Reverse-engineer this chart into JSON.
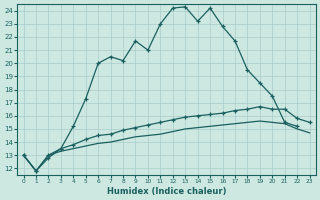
{
  "xlabel": "Humidex (Indice chaleur)",
  "xlim": [
    -0.5,
    23.5
  ],
  "ylim": [
    11.5,
    24.5
  ],
  "xticks": [
    0,
    1,
    2,
    3,
    4,
    5,
    6,
    7,
    8,
    9,
    10,
    11,
    12,
    13,
    14,
    15,
    16,
    17,
    18,
    19,
    20,
    21,
    22,
    23
  ],
  "yticks": [
    12,
    13,
    14,
    15,
    16,
    17,
    18,
    19,
    20,
    21,
    22,
    23,
    24
  ],
  "bg_color": "#cce8e0",
  "grid_color": "#aacccc",
  "line_color": "#1a6060",
  "line1_x": [
    0,
    1,
    2,
    3,
    4,
    5,
    6,
    7,
    8,
    9,
    10,
    11,
    12,
    13,
    14,
    15,
    16,
    17,
    18,
    19,
    20,
    21,
    22
  ],
  "line1_y": [
    13.0,
    11.8,
    12.8,
    13.5,
    15.2,
    17.3,
    20.0,
    20.5,
    20.2,
    21.7,
    21.0,
    23.0,
    24.2,
    24.3,
    23.2,
    24.2,
    22.8,
    21.7,
    19.5,
    18.5,
    17.5,
    15.5,
    15.2
  ],
  "line2_x": [
    0,
    1,
    2,
    3,
    4,
    5,
    6,
    7,
    8,
    9,
    10,
    11,
    12,
    13,
    14,
    15,
    16,
    17,
    18,
    19,
    20,
    21,
    22,
    23
  ],
  "line2_y": [
    13.0,
    11.8,
    13.0,
    13.5,
    13.8,
    14.2,
    14.5,
    14.6,
    14.9,
    15.1,
    15.3,
    15.5,
    15.7,
    15.9,
    16.0,
    16.1,
    16.2,
    16.4,
    16.5,
    16.7,
    16.5,
    16.5,
    15.8,
    15.5
  ],
  "line3_x": [
    0,
    1,
    2,
    3,
    4,
    5,
    6,
    7,
    8,
    9,
    10,
    11,
    12,
    13,
    14,
    15,
    16,
    17,
    18,
    19,
    20,
    21,
    22,
    23
  ],
  "line3_y": [
    13.0,
    11.8,
    13.0,
    13.3,
    13.5,
    13.7,
    13.9,
    14.0,
    14.2,
    14.4,
    14.5,
    14.6,
    14.8,
    15.0,
    15.1,
    15.2,
    15.3,
    15.4,
    15.5,
    15.6,
    15.5,
    15.4,
    15.0,
    14.7
  ]
}
